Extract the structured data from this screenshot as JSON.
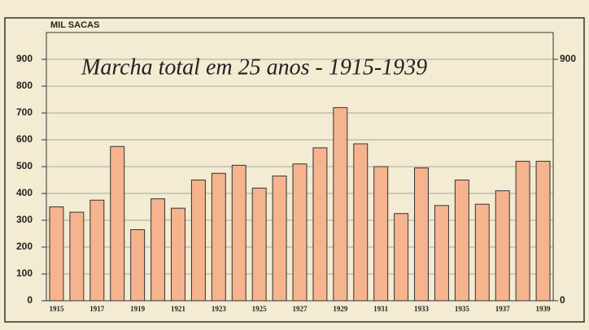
{
  "chart_data": {
    "type": "bar",
    "title": "Marcha total em 25 anos - 1915-1939",
    "y_label": "MIL SACAS",
    "categories": [
      "1915",
      null,
      "1917",
      null,
      "1919",
      null,
      "1921",
      null,
      "1923",
      null,
      "1925",
      null,
      "1927",
      null,
      "1929",
      null,
      "1931",
      null,
      "1933",
      null,
      "1935",
      null,
      "1937",
      null,
      "1939"
    ],
    "values": [
      350,
      330,
      375,
      575,
      265,
      380,
      345,
      450,
      475,
      505,
      420,
      465,
      510,
      570,
      720,
      585,
      500,
      325,
      495,
      355,
      450,
      360,
      410,
      520,
      520
    ],
    "color": "#f5b48e",
    "ylim": [
      0,
      1000
    ],
    "yticks": [
      0,
      100,
      200,
      300,
      400,
      500,
      600,
      700,
      800,
      900
    ],
    "y2lim": [
      0,
      1000
    ],
    "y2ticks": [
      0,
      900
    ],
    "grid": true
  }
}
